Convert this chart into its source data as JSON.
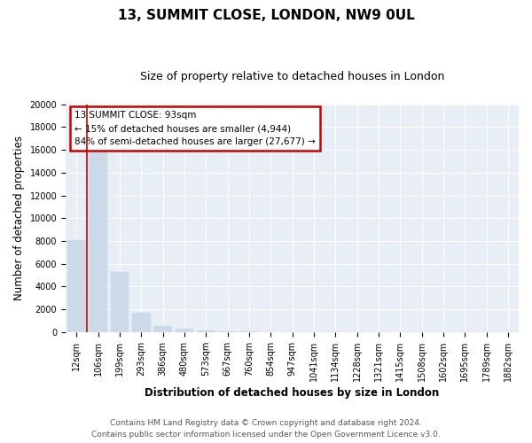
{
  "title": "13, SUMMIT CLOSE, LONDON, NW9 0UL",
  "subtitle": "Size of property relative to detached houses in London",
  "xlabel": "Distribution of detached houses by size in London",
  "ylabel": "Number of detached properties",
  "categories": [
    "12sqm",
    "106sqm",
    "199sqm",
    "293sqm",
    "386sqm",
    "480sqm",
    "573sqm",
    "667sqm",
    "760sqm",
    "854sqm",
    "947sqm",
    "1041sqm",
    "1134sqm",
    "1228sqm",
    "1321sqm",
    "1415sqm",
    "1508sqm",
    "1602sqm",
    "1695sqm",
    "1789sqm",
    "1882sqm"
  ],
  "values": [
    8100,
    16500,
    5300,
    1700,
    550,
    300,
    180,
    80,
    30,
    10,
    5,
    3,
    2,
    1,
    1,
    1,
    0,
    0,
    0,
    0,
    0
  ],
  "bar_color": "#ccd9e8",
  "annotation_box_color": "#cc0000",
  "annotation_title": "13 SUMMIT CLOSE: 93sqm",
  "annotation_line1": "← 15% of detached houses are smaller (4,944)",
  "annotation_line2": "84% of semi-detached houses are larger (27,677) →",
  "marker_color": "#cc0000",
  "ylim": [
    0,
    20000
  ],
  "yticks": [
    0,
    2000,
    4000,
    6000,
    8000,
    10000,
    12000,
    14000,
    16000,
    18000,
    20000
  ],
  "footer_line1": "Contains HM Land Registry data © Crown copyright and database right 2024.",
  "footer_line2": "Contains public sector information licensed under the Open Government Licence v3.0.",
  "bg_color": "#ffffff",
  "plot_bg_color": "#e8eef5",
  "grid_color": "#ffffff",
  "title_fontsize": 11,
  "subtitle_fontsize": 9,
  "axis_label_fontsize": 8.5,
  "tick_fontsize": 7,
  "footer_fontsize": 6.5,
  "annotation_fontsize": 7.5
}
